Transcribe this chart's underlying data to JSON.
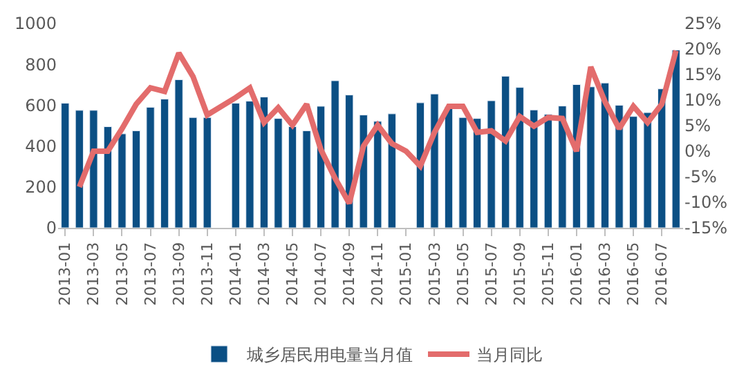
{
  "chart_data": {
    "type": "bar",
    "categories": [
      "2013-01",
      null,
      "2013-03",
      null,
      "2013-05",
      null,
      "2013-07",
      null,
      "2013-09",
      null,
      "2013-11",
      null,
      "2014-01",
      null,
      "2014-03",
      null,
      "2014-05",
      null,
      "2014-07",
      null,
      "2014-09",
      null,
      "2014-11",
      null,
      "2015-01",
      null,
      "2015-03",
      null,
      "2015-05",
      null,
      "2015-07",
      null,
      "2015-09",
      null,
      "2015-11",
      null,
      "2016-01",
      null,
      "2016-03",
      null,
      "2016-05",
      null,
      "2016-07",
      null
    ],
    "series": [
      {
        "name": "城乡居民用电量当月值",
        "color": "#0b4f84",
        "values": [
          610,
          575,
          575,
          495,
          460,
          475,
          590,
          630,
          725,
          540,
          540,
          null,
          610,
          620,
          640,
          535,
          495,
          475,
          595,
          720,
          650,
          552,
          521,
          558,
          null,
          612,
          655,
          590,
          540,
          535,
          622,
          742,
          687,
          577,
          555,
          596,
          701,
          690,
          709,
          600,
          545,
          564,
          680,
          870
        ]
      },
      {
        "name": "当月同比",
        "type": "line",
        "axis": "y2",
        "color": "#e36c6c",
        "values": [
          null,
          -7,
          0,
          0,
          4.4,
          9.2,
          12.4,
          11.7,
          19.2,
          14.6,
          7.1,
          null,
          10.5,
          12.4,
          5.6,
          8.5,
          5.1,
          9.2,
          0.3,
          -5.3,
          -10.2,
          1,
          5.1,
          1.5,
          0,
          -2.9,
          3.7,
          8.8,
          8.8,
          3.7,
          4,
          2,
          6.8,
          4.9,
          6.6,
          6.4,
          0,
          16.5,
          9.7,
          4.4,
          8.8,
          5.6,
          9.2,
          19.7
        ]
      }
    ],
    "ylim": [
      0,
      1000
    ],
    "yticks": [
      0,
      200,
      400,
      600,
      800,
      1000
    ],
    "y2lim": [
      -15,
      25
    ],
    "y2ticks": [
      {
        "value": -15,
        "label": "-15%"
      },
      {
        "value": -10,
        "label": "-10%"
      },
      {
        "value": -5,
        "label": "-5%"
      },
      {
        "value": 0,
        "label": "0%"
      },
      {
        "value": 5,
        "label": "5%"
      },
      {
        "value": 10,
        "label": "10%"
      },
      {
        "value": 15,
        "label": "15%"
      },
      {
        "value": 20,
        "label": "20%"
      },
      {
        "value": 25,
        "label": "25%"
      }
    ],
    "legend": "bottom",
    "marker": "none",
    "line_style": "solid"
  }
}
